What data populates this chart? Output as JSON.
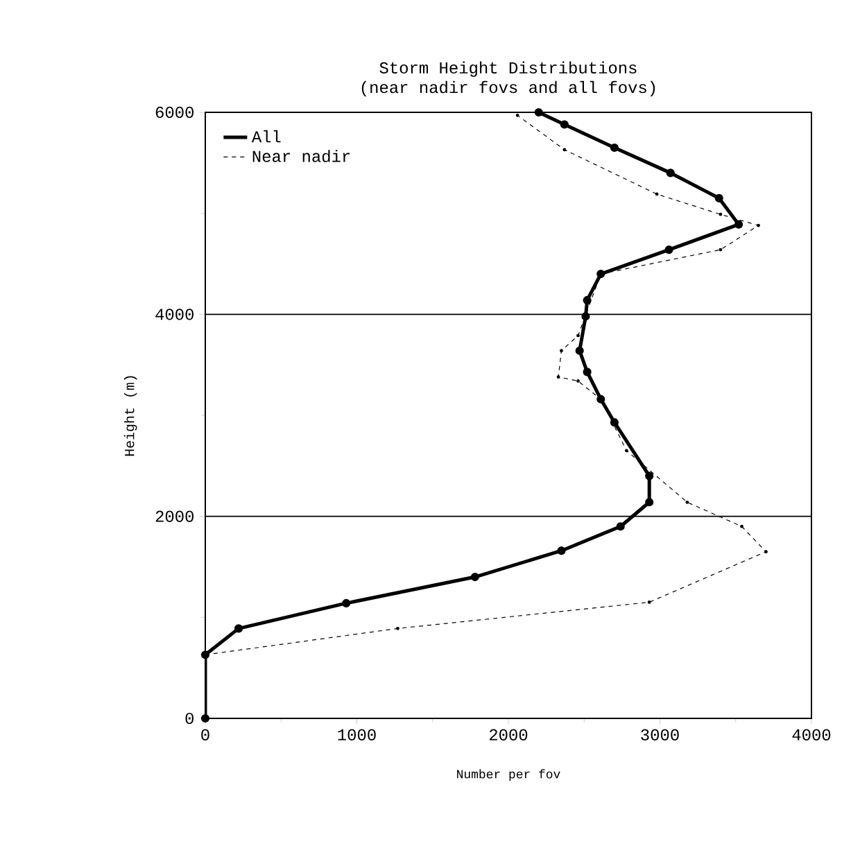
{
  "chart_data": {
    "type": "line",
    "title": "Storm Height Distributions",
    "subtitle": "(near nadir fovs and all fovs)",
    "xlabel": "Number per fov",
    "ylabel": "Height (m)",
    "xlim": [
      0,
      4000
    ],
    "ylim": [
      0,
      6000
    ],
    "xticks": [
      0,
      1000,
      2000,
      3000,
      4000
    ],
    "yticks": [
      0,
      2000,
      4000,
      6000
    ],
    "grid": "y",
    "legend": "top left",
    "series": [
      {
        "name": "All",
        "color": "#000000",
        "line_style": "solid",
        "marker": "circle",
        "x": [
          0,
          0,
          220,
          930,
          1780,
          2350,
          2740,
          2930,
          2930,
          2700,
          2610,
          2520,
          2470,
          2510,
          2520,
          2610,
          3060,
          3520,
          3390,
          3070,
          2700,
          2370,
          2200
        ],
        "values": [
          0,
          630,
          890,
          1140,
          1400,
          1660,
          1900,
          2140,
          2400,
          2930,
          3160,
          3430,
          3640,
          3980,
          4140,
          4400,
          4640,
          4890,
          5150,
          5400,
          5650,
          5880,
          6000
        ]
      },
      {
        "name": "Near nadir",
        "color": "#000000",
        "line_style": "dashed",
        "marker": "circle",
        "x": [
          0,
          1270,
          2930,
          3700,
          3540,
          3180,
          2780,
          2610,
          2460,
          2330,
          2350,
          2460,
          2520,
          2610,
          3400,
          3650,
          3400,
          2980,
          2370,
          2060
        ],
        "values": [
          630,
          890,
          1150,
          1650,
          1900,
          2140,
          2650,
          3160,
          3340,
          3380,
          3640,
          3790,
          null,
          4400,
          4640,
          4880,
          4990,
          5190,
          5630,
          5970
        ]
      }
    ]
  }
}
